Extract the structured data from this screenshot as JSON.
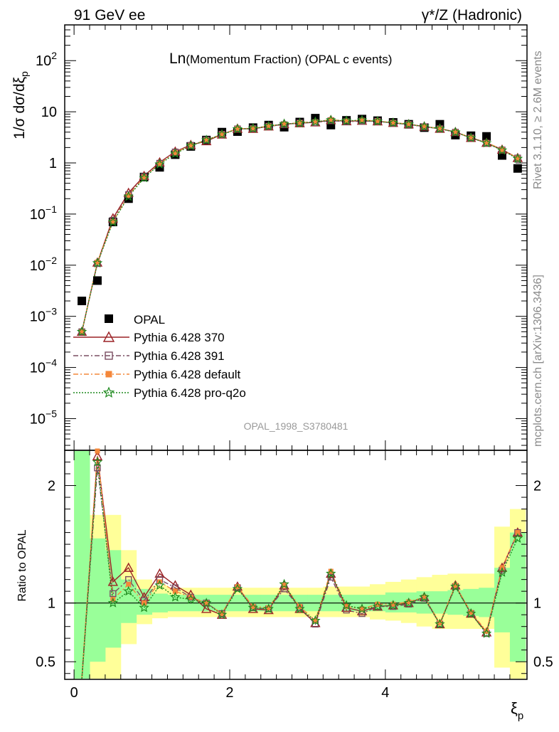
{
  "header": {
    "left": "91 GeV ee",
    "right": "γ*/Z (Hadronic)"
  },
  "side": {
    "rivet": "Rivet 3.1.10, ≥ 2.6M events",
    "mcplots": "mcplots.cern.ch [arXiv:1306.3436]"
  },
  "chart_data": {
    "type": "scatter",
    "title_main": "Ln",
    "title_rest": "(Momentum Fraction) (OPAL c events)",
    "analysis_id": "OPAL_1998_S3780481",
    "ylabel": "1/σ dσ/dξ",
    "ylabel_sub": "p",
    "xlabel": "ξ",
    "xlabel_sub": "p",
    "ratio_ylabel": "Ratio to OPAL",
    "xlim": [
      -0.12,
      5.82
    ],
    "ylim_log": [
      2.4e-06,
      500
    ],
    "ratio_ylim": [
      0.35,
      2.3
    ],
    "x_ticks": [
      "0",
      "2",
      "4"
    ],
    "y_ticks": [
      {
        "m": "10",
        "e": "2"
      },
      {
        "m": "10",
        "e": ""
      },
      {
        "m": "1",
        "e": ""
      },
      {
        "m": "10",
        "e": "−1"
      },
      {
        "m": "10",
        "e": "−2"
      },
      {
        "m": "10",
        "e": "−3"
      },
      {
        "m": "10",
        "e": "−4"
      },
      {
        "m": "10",
        "e": "−5"
      }
    ],
    "ratio_ticks": [
      "2",
      "1",
      "0.5"
    ],
    "x": [
      0.1,
      0.3,
      0.5,
      0.7,
      0.9,
      1.1,
      1.3,
      1.5,
      1.7,
      1.9,
      2.1,
      2.3,
      2.5,
      2.7,
      2.9,
      3.1,
      3.3,
      3.5,
      3.7,
      3.9,
      4.1,
      4.3,
      4.5,
      4.7,
      4.9,
      5.1,
      5.3,
      5.5,
      5.7
    ],
    "data": {
      "name": "OPAL",
      "values": [
        0.002,
        0.005,
        0.07,
        0.2,
        0.53,
        0.82,
        1.45,
        2.1,
        2.8,
        4.0,
        4.1,
        4.9,
        5.5,
        5.0,
        6.3,
        7.5,
        5.5,
        6.8,
        7.2,
        6.7,
        6.2,
        5.7,
        4.9,
        5.7,
        3.5,
        3.4,
        3.3,
        1.4,
        0.78
      ]
    },
    "series": [
      {
        "name": "Pythia 6.428 370",
        "color": "#9b2226",
        "marker": "triangle",
        "line": "solid",
        "ratio": [
          0.25,
          2.25,
          1.18,
          1.3,
          1.05,
          1.25,
          1.15,
          1.07,
          0.95,
          0.9,
          1.14,
          0.95,
          0.94,
          1.15,
          0.95,
          0.83,
          1.25,
          0.96,
          0.93,
          0.97,
          0.98,
          1.0,
          1.05,
          0.82,
          1.15,
          0.91,
          0.75,
          1.3,
          1.6
        ]
      },
      {
        "name": "Pythia 6.428 391",
        "color": "#7a4d61",
        "marker": "square",
        "line": "dashdot",
        "ratio": [
          0.25,
          2.15,
          1.08,
          1.2,
          1.02,
          1.2,
          1.13,
          1.05,
          1.0,
          0.91,
          1.13,
          0.96,
          0.95,
          1.12,
          0.96,
          0.82,
          1.22,
          0.94,
          0.91,
          0.97,
          0.97,
          0.99,
          1.04,
          0.82,
          1.14,
          0.91,
          0.74,
          1.28,
          1.6
        ]
      },
      {
        "name": "Pythia 6.428 default",
        "color": "#f4873a",
        "marker": "filled-square",
        "line": "dashdot",
        "ratio": [
          0.25,
          2.3,
          1.03,
          1.16,
          1.0,
          1.18,
          1.1,
          1.05,
          1.0,
          0.91,
          1.14,
          0.97,
          0.96,
          1.15,
          0.97,
          0.85,
          1.27,
          0.97,
          0.95,
          0.99,
          0.99,
          1.01,
          1.05,
          0.83,
          1.15,
          0.92,
          0.76,
          1.3,
          1.6
        ]
      },
      {
        "name": "Pythia 6.428 pro-q2o",
        "color": "#1e8a1e",
        "marker": "star",
        "line": "dotted",
        "ratio": [
          0.25,
          2.2,
          1.0,
          1.1,
          0.96,
          1.15,
          1.05,
          1.03,
          1.0,
          0.9,
          1.12,
          0.96,
          0.95,
          1.16,
          0.95,
          0.85,
          1.25,
          0.98,
          0.95,
          0.97,
          0.98,
          1.0,
          1.05,
          0.82,
          1.14,
          0.91,
          0.74,
          1.26,
          1.55
        ]
      }
    ],
    "bands": {
      "inner": [
        [
          0,
          0
        ],
        [
          0.55,
          0.5
        ],
        [
          0.45,
          0.38
        ],
        [
          0.2,
          0.17
        ],
        [
          0.12,
          0.1
        ],
        [
          0.08,
          0.08
        ],
        [
          0.07,
          0.07
        ],
        [
          0.07,
          0.07
        ],
        [
          0.07,
          0.07
        ],
        [
          0.07,
          0.07
        ],
        [
          0.07,
          0.07
        ],
        [
          0.07,
          0.07
        ],
        [
          0.07,
          0.07
        ],
        [
          0.07,
          0.07
        ],
        [
          0.07,
          0.07
        ],
        [
          0.07,
          0.07
        ],
        [
          0.07,
          0.07
        ],
        [
          0.07,
          0.07
        ],
        [
          0.07,
          0.07
        ],
        [
          0.07,
          0.07
        ],
        [
          0.09,
          0.08
        ],
        [
          0.09,
          0.08
        ],
        [
          0.1,
          0.09
        ],
        [
          0.1,
          0.09
        ],
        [
          0.11,
          0.1
        ],
        [
          0.12,
          0.11
        ],
        [
          0.13,
          0.12
        ],
        [
          0.3,
          0.25
        ],
        [
          0.6,
          0.5
        ]
      ],
      "outer": [
        [
          0,
          0
        ],
        [
          0.75,
          0.65
        ],
        [
          0.75,
          0.65
        ],
        [
          0.45,
          0.35
        ],
        [
          0.2,
          0.18
        ],
        [
          0.15,
          0.13
        ],
        [
          0.13,
          0.12
        ],
        [
          0.13,
          0.12
        ],
        [
          0.13,
          0.12
        ],
        [
          0.13,
          0.12
        ],
        [
          0.13,
          0.12
        ],
        [
          0.13,
          0.12
        ],
        [
          0.13,
          0.12
        ],
        [
          0.13,
          0.12
        ],
        [
          0.13,
          0.12
        ],
        [
          0.13,
          0.12
        ],
        [
          0.14,
          0.12
        ],
        [
          0.14,
          0.12
        ],
        [
          0.14,
          0.12
        ],
        [
          0.16,
          0.14
        ],
        [
          0.18,
          0.15
        ],
        [
          0.2,
          0.17
        ],
        [
          0.22,
          0.2
        ],
        [
          0.24,
          0.22
        ],
        [
          0.25,
          0.22
        ],
        [
          0.25,
          0.22
        ],
        [
          0.25,
          0.22
        ],
        [
          0.65,
          0.55
        ],
        [
          0.8,
          0.8
        ]
      ]
    }
  }
}
